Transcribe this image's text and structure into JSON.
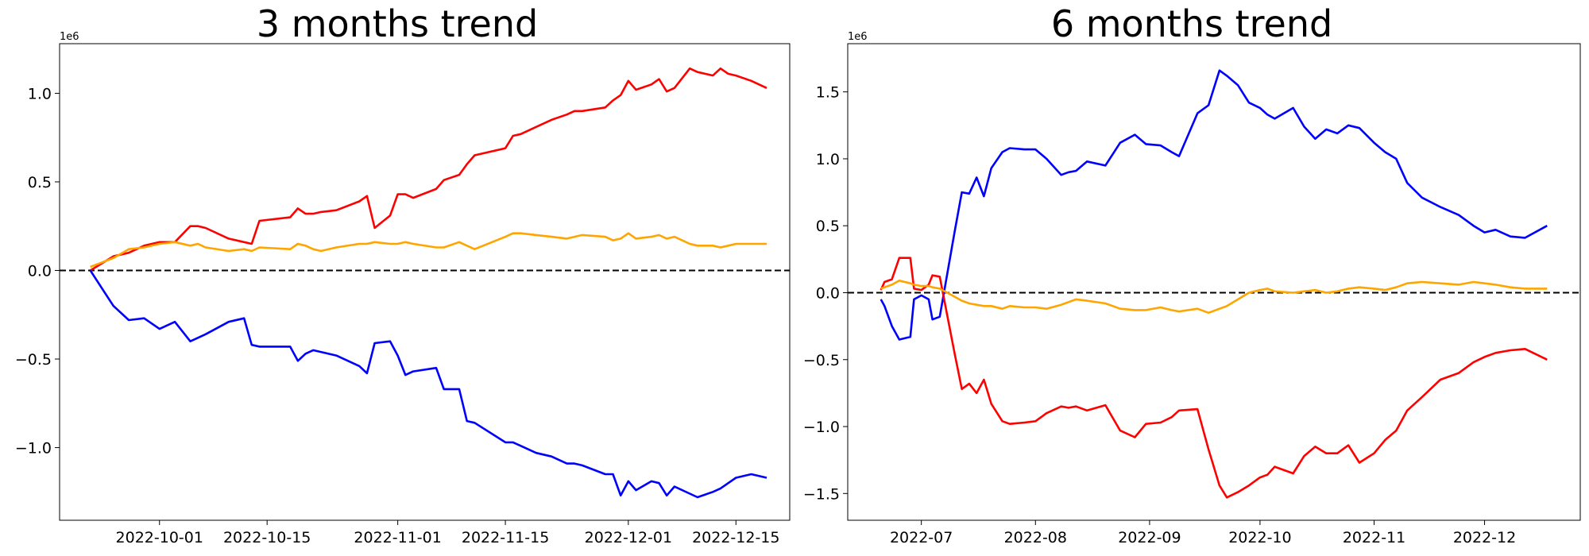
{
  "chart_data": [
    {
      "type": "line",
      "title": "3 months trend",
      "xlabel": "",
      "ylabel": "",
      "y_offset_label": "1e6",
      "xlim": [
        "2022-09-18",
        "2022-12-22"
      ],
      "ylim": [
        -1.41,
        1.28
      ],
      "x_ticks": [
        "2022-10-01",
        "2022-10-15",
        "2022-11-01",
        "2022-11-15",
        "2022-12-01",
        "2022-12-15"
      ],
      "x_tick_labels": [
        "2022-10-01",
        "2022-10-15",
        "2022-11-01",
        "2022-11-15",
        "2022-12-01",
        "2022-12-15"
      ],
      "y_ticks": [
        -1.0,
        -0.5,
        0.0,
        0.5,
        1.0
      ],
      "y_tick_labels": [
        "−1.0",
        "−0.5",
        "0.0",
        "0.5",
        "1.0"
      ],
      "reference_line": {
        "y": 0,
        "style": "dashed",
        "color": "#000000"
      },
      "grid": false,
      "legend": null,
      "series": [
        {
          "color": "#ff0000",
          "x": [
            "2022-09-22",
            "2022-09-25",
            "2022-09-27",
            "2022-09-29",
            "2022-10-01",
            "2022-10-03",
            "2022-10-05",
            "2022-10-06",
            "2022-10-07",
            "2022-10-10",
            "2022-10-12",
            "2022-10-13",
            "2022-10-14",
            "2022-10-18",
            "2022-10-19",
            "2022-10-20",
            "2022-10-21",
            "2022-10-22",
            "2022-10-24",
            "2022-10-27",
            "2022-10-28",
            "2022-10-29",
            "2022-10-31",
            "2022-11-01",
            "2022-11-02",
            "2022-11-03",
            "2022-11-06",
            "2022-11-07",
            "2022-11-09",
            "2022-11-10",
            "2022-11-11",
            "2022-11-15",
            "2022-11-16",
            "2022-11-17",
            "2022-11-19",
            "2022-11-21",
            "2022-11-23",
            "2022-11-24",
            "2022-11-25",
            "2022-11-28",
            "2022-11-29",
            "2022-11-30",
            "2022-12-01",
            "2022-12-02",
            "2022-12-04",
            "2022-12-05",
            "2022-12-06",
            "2022-12-07",
            "2022-12-09",
            "2022-12-10",
            "2022-12-12",
            "2022-12-13",
            "2022-12-14",
            "2022-12-15",
            "2022-12-17",
            "2022-12-19"
          ],
          "values": [
            0.0,
            0.08,
            0.1,
            0.14,
            0.16,
            0.16,
            0.25,
            0.25,
            0.24,
            0.18,
            0.16,
            0.15,
            0.28,
            0.3,
            0.35,
            0.32,
            0.32,
            0.33,
            0.34,
            0.39,
            0.42,
            0.24,
            0.31,
            0.43,
            0.43,
            0.41,
            0.46,
            0.51,
            0.54,
            0.6,
            0.65,
            0.69,
            0.76,
            0.77,
            0.81,
            0.85,
            0.88,
            0.9,
            0.9,
            0.92,
            0.96,
            0.99,
            1.07,
            1.02,
            1.05,
            1.08,
            1.01,
            1.03,
            1.14,
            1.12,
            1.1,
            1.14,
            1.11,
            1.1,
            1.07,
            1.03
          ]
        },
        {
          "color": "#ffa500",
          "x": [
            "2022-09-22",
            "2022-09-25",
            "2022-09-27",
            "2022-09-29",
            "2022-10-01",
            "2022-10-03",
            "2022-10-05",
            "2022-10-06",
            "2022-10-07",
            "2022-10-10",
            "2022-10-12",
            "2022-10-13",
            "2022-10-14",
            "2022-10-18",
            "2022-10-19",
            "2022-10-20",
            "2022-10-21",
            "2022-10-22",
            "2022-10-24",
            "2022-10-27",
            "2022-10-28",
            "2022-10-29",
            "2022-10-31",
            "2022-11-01",
            "2022-11-02",
            "2022-11-03",
            "2022-11-06",
            "2022-11-07",
            "2022-11-09",
            "2022-11-10",
            "2022-11-11",
            "2022-11-15",
            "2022-11-16",
            "2022-11-17",
            "2022-11-19",
            "2022-11-21",
            "2022-11-23",
            "2022-11-24",
            "2022-11-25",
            "2022-11-28",
            "2022-11-29",
            "2022-11-30",
            "2022-12-01",
            "2022-12-02",
            "2022-12-04",
            "2022-12-05",
            "2022-12-06",
            "2022-12-07",
            "2022-12-09",
            "2022-12-10",
            "2022-12-12",
            "2022-12-13",
            "2022-12-14",
            "2022-12-15",
            "2022-12-17",
            "2022-12-19"
          ],
          "values": [
            0.02,
            0.07,
            0.12,
            0.13,
            0.15,
            0.16,
            0.14,
            0.15,
            0.13,
            0.11,
            0.12,
            0.11,
            0.13,
            0.12,
            0.15,
            0.14,
            0.12,
            0.11,
            0.13,
            0.15,
            0.15,
            0.16,
            0.15,
            0.15,
            0.16,
            0.15,
            0.13,
            0.13,
            0.16,
            0.14,
            0.12,
            0.19,
            0.21,
            0.21,
            0.2,
            0.19,
            0.18,
            0.19,
            0.2,
            0.19,
            0.17,
            0.18,
            0.21,
            0.18,
            0.19,
            0.2,
            0.18,
            0.19,
            0.15,
            0.14,
            0.14,
            0.13,
            0.14,
            0.15,
            0.15,
            0.15
          ]
        },
        {
          "color": "#0000ff",
          "x": [
            "2022-09-22",
            "2022-09-25",
            "2022-09-27",
            "2022-09-29",
            "2022-10-01",
            "2022-10-03",
            "2022-10-05",
            "2022-10-06",
            "2022-10-07",
            "2022-10-10",
            "2022-10-12",
            "2022-10-13",
            "2022-10-14",
            "2022-10-18",
            "2022-10-19",
            "2022-10-20",
            "2022-10-21",
            "2022-10-22",
            "2022-10-24",
            "2022-10-27",
            "2022-10-28",
            "2022-10-29",
            "2022-10-31",
            "2022-11-01",
            "2022-11-02",
            "2022-11-03",
            "2022-11-06",
            "2022-11-07",
            "2022-11-09",
            "2022-11-10",
            "2022-11-11",
            "2022-11-15",
            "2022-11-16",
            "2022-11-17",
            "2022-11-19",
            "2022-11-21",
            "2022-11-23",
            "2022-11-24",
            "2022-11-25",
            "2022-11-28",
            "2022-11-29",
            "2022-11-30",
            "2022-12-01",
            "2022-12-02",
            "2022-12-04",
            "2022-12-05",
            "2022-12-06",
            "2022-12-07",
            "2022-12-09",
            "2022-12-10",
            "2022-12-12",
            "2022-12-13",
            "2022-12-14",
            "2022-12-15",
            "2022-12-17",
            "2022-12-19"
          ],
          "values": [
            0.0,
            -0.2,
            -0.28,
            -0.27,
            -0.33,
            -0.29,
            -0.4,
            -0.38,
            -0.36,
            -0.29,
            -0.27,
            -0.42,
            -0.43,
            -0.43,
            -0.51,
            -0.47,
            -0.45,
            -0.46,
            -0.48,
            -0.54,
            -0.58,
            -0.41,
            -0.4,
            -0.48,
            -0.59,
            -0.57,
            -0.55,
            -0.67,
            -0.67,
            -0.85,
            -0.86,
            -0.97,
            -0.97,
            -0.99,
            -1.03,
            -1.05,
            -1.09,
            -1.09,
            -1.1,
            -1.15,
            -1.15,
            -1.27,
            -1.19,
            -1.24,
            -1.19,
            -1.2,
            -1.27,
            -1.22,
            -1.26,
            -1.28,
            -1.25,
            -1.23,
            -1.2,
            -1.17,
            -1.15,
            -1.17
          ]
        }
      ]
    },
    {
      "type": "line",
      "title": "6 months trend",
      "xlabel": "",
      "ylabel": "",
      "y_offset_label": "1e6",
      "xlim": [
        "2022-06-11",
        "2022-12-27"
      ],
      "ylim": [
        -1.7,
        1.86
      ],
      "x_ticks": [
        "2022-07-01",
        "2022-08-01",
        "2022-09-01",
        "2022-10-01",
        "2022-11-01",
        "2022-12-01"
      ],
      "x_tick_labels": [
        "2022-07",
        "2022-08",
        "2022-09",
        "2022-10",
        "2022-11",
        "2022-12"
      ],
      "y_ticks": [
        -1.5,
        -1.0,
        -0.5,
        0.0,
        0.5,
        1.0,
        1.5
      ],
      "y_tick_labels": [
        "−1.5",
        "−1.0",
        "−0.5",
        "0.0",
        "0.5",
        "1.0",
        "1.5"
      ],
      "reference_line": {
        "y": 0,
        "style": "dashed",
        "color": "#000000"
      },
      "grid": false,
      "legend": null,
      "series": [
        {
          "color": "#0000ff",
          "x": [
            "2022-06-20",
            "2022-06-21",
            "2022-06-23",
            "2022-06-25",
            "2022-06-28",
            "2022-06-29",
            "2022-07-01",
            "2022-07-03",
            "2022-07-04",
            "2022-07-06",
            "2022-07-10",
            "2022-07-12",
            "2022-07-14",
            "2022-07-16",
            "2022-07-18",
            "2022-07-20",
            "2022-07-23",
            "2022-07-25",
            "2022-07-29",
            "2022-08-01",
            "2022-08-04",
            "2022-08-08",
            "2022-08-10",
            "2022-08-12",
            "2022-08-15",
            "2022-08-20",
            "2022-08-24",
            "2022-08-28",
            "2022-08-31",
            "2022-09-04",
            "2022-09-07",
            "2022-09-09",
            "2022-09-14",
            "2022-09-17",
            "2022-09-20",
            "2022-09-22",
            "2022-09-25",
            "2022-09-28",
            "2022-10-01",
            "2022-10-03",
            "2022-10-05",
            "2022-10-10",
            "2022-10-13",
            "2022-10-16",
            "2022-10-19",
            "2022-10-22",
            "2022-10-25",
            "2022-10-28",
            "2022-11-01",
            "2022-11-04",
            "2022-11-07",
            "2022-11-10",
            "2022-11-14",
            "2022-11-19",
            "2022-11-24",
            "2022-11-28",
            "2022-12-01",
            "2022-12-04",
            "2022-12-08",
            "2022-12-12",
            "2022-12-18"
          ],
          "values": [
            -0.05,
            -0.1,
            -0.25,
            -0.35,
            -0.33,
            -0.05,
            -0.02,
            -0.05,
            -0.2,
            -0.18,
            0.45,
            0.75,
            0.74,
            0.86,
            0.72,
            0.93,
            1.05,
            1.08,
            1.07,
            1.07,
            1.0,
            0.88,
            0.9,
            0.91,
            0.98,
            0.95,
            1.12,
            1.18,
            1.11,
            1.1,
            1.05,
            1.02,
            1.34,
            1.4,
            1.66,
            1.62,
            1.55,
            1.42,
            1.38,
            1.33,
            1.3,
            1.38,
            1.24,
            1.15,
            1.22,
            1.19,
            1.25,
            1.23,
            1.12,
            1.05,
            1.0,
            0.82,
            0.71,
            0.64,
            0.58,
            0.5,
            0.45,
            0.47,
            0.42,
            0.41,
            0.5
          ]
        },
        {
          "color": "#ff0000",
          "x": [
            "2022-06-20",
            "2022-06-21",
            "2022-06-23",
            "2022-06-25",
            "2022-06-28",
            "2022-06-29",
            "2022-07-01",
            "2022-07-03",
            "2022-07-04",
            "2022-07-06",
            "2022-07-10",
            "2022-07-12",
            "2022-07-14",
            "2022-07-16",
            "2022-07-18",
            "2022-07-20",
            "2022-07-23",
            "2022-07-25",
            "2022-07-29",
            "2022-08-01",
            "2022-08-04",
            "2022-08-08",
            "2022-08-10",
            "2022-08-12",
            "2022-08-15",
            "2022-08-20",
            "2022-08-24",
            "2022-08-28",
            "2022-08-31",
            "2022-09-04",
            "2022-09-07",
            "2022-09-09",
            "2022-09-14",
            "2022-09-17",
            "2022-09-20",
            "2022-09-22",
            "2022-09-25",
            "2022-09-28",
            "2022-10-01",
            "2022-10-03",
            "2022-10-05",
            "2022-10-10",
            "2022-10-13",
            "2022-10-16",
            "2022-10-19",
            "2022-10-22",
            "2022-10-25",
            "2022-10-28",
            "2022-11-01",
            "2022-11-04",
            "2022-11-07",
            "2022-11-10",
            "2022-11-14",
            "2022-11-19",
            "2022-11-24",
            "2022-11-28",
            "2022-12-01",
            "2022-12-04",
            "2022-12-08",
            "2022-12-12",
            "2022-12-18"
          ],
          "values": [
            0.02,
            0.08,
            0.1,
            0.26,
            0.26,
            0.03,
            0.02,
            0.06,
            0.13,
            0.12,
            -0.45,
            -0.72,
            -0.68,
            -0.75,
            -0.65,
            -0.83,
            -0.96,
            -0.98,
            -0.97,
            -0.96,
            -0.9,
            -0.85,
            -0.86,
            -0.85,
            -0.88,
            -0.84,
            -1.03,
            -1.08,
            -0.98,
            -0.97,
            -0.93,
            -0.88,
            -0.87,
            -1.17,
            -1.44,
            -1.53,
            -1.49,
            -1.44,
            -1.38,
            -1.36,
            -1.3,
            -1.35,
            -1.22,
            -1.15,
            -1.2,
            -1.2,
            -1.14,
            -1.27,
            -1.2,
            -1.1,
            -1.03,
            -0.88,
            -0.78,
            -0.65,
            -0.6,
            -0.52,
            -0.48,
            -0.45,
            -0.43,
            -0.42,
            -0.5
          ]
        },
        {
          "color": "#ffa500",
          "x": [
            "2022-06-20",
            "2022-06-21",
            "2022-06-23",
            "2022-06-25",
            "2022-06-28",
            "2022-06-29",
            "2022-07-01",
            "2022-07-03",
            "2022-07-04",
            "2022-07-06",
            "2022-07-10",
            "2022-07-12",
            "2022-07-14",
            "2022-07-16",
            "2022-07-18",
            "2022-07-20",
            "2022-07-23",
            "2022-07-25",
            "2022-07-29",
            "2022-08-01",
            "2022-08-04",
            "2022-08-08",
            "2022-08-10",
            "2022-08-12",
            "2022-08-15",
            "2022-08-20",
            "2022-08-24",
            "2022-08-28",
            "2022-08-31",
            "2022-09-04",
            "2022-09-07",
            "2022-09-09",
            "2022-09-14",
            "2022-09-17",
            "2022-09-20",
            "2022-09-22",
            "2022-09-25",
            "2022-09-28",
            "2022-10-01",
            "2022-10-03",
            "2022-10-05",
            "2022-10-10",
            "2022-10-13",
            "2022-10-16",
            "2022-10-19",
            "2022-10-22",
            "2022-10-25",
            "2022-10-28",
            "2022-11-01",
            "2022-11-04",
            "2022-11-07",
            "2022-11-10",
            "2022-11-14",
            "2022-11-19",
            "2022-11-24",
            "2022-11-28",
            "2022-12-01",
            "2022-12-04",
            "2022-12-08",
            "2022-12-12",
            "2022-12-18"
          ],
          "values": [
            0.03,
            0.04,
            0.06,
            0.09,
            0.07,
            0.06,
            0.05,
            0.05,
            0.04,
            0.03,
            -0.03,
            -0.06,
            -0.08,
            -0.09,
            -0.1,
            -0.1,
            -0.12,
            -0.1,
            -0.11,
            -0.11,
            -0.12,
            -0.09,
            -0.07,
            -0.05,
            -0.06,
            -0.08,
            -0.12,
            -0.13,
            -0.13,
            -0.11,
            -0.13,
            -0.14,
            -0.12,
            -0.15,
            -0.12,
            -0.1,
            -0.05,
            0.0,
            0.02,
            0.03,
            0.01,
            0.0,
            0.01,
            0.02,
            0.0,
            0.01,
            0.03,
            0.04,
            0.03,
            0.02,
            0.04,
            0.07,
            0.08,
            0.07,
            0.06,
            0.08,
            0.07,
            0.06,
            0.04,
            0.03,
            0.03
          ]
        }
      ]
    }
  ]
}
